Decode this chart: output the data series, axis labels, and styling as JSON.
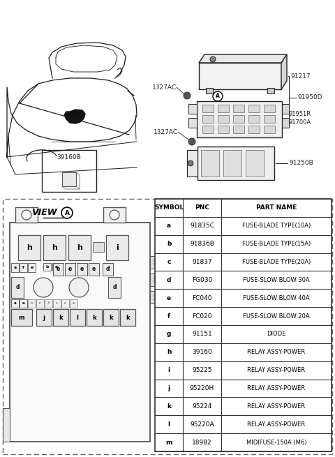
{
  "bg_color": "#ffffff",
  "table_headers": [
    "SYMBOL",
    "PNC",
    "PART NAME"
  ],
  "table_rows": [
    [
      "a",
      "91835C",
      "FUSE-BLADE TYPE(10A)"
    ],
    [
      "b",
      "91836B",
      "FUSE-BLADE TYPE(15A)"
    ],
    [
      "c",
      "91837",
      "FUSE-BLADE TYPE(20A)"
    ],
    [
      "d",
      "FG030",
      "FUSE-SLOW BLOW 30A"
    ],
    [
      "e",
      "FC040",
      "FUSE-SLOW BLOW 40A"
    ],
    [
      "f",
      "FC020",
      "FUSE-SLOW BLOW 20A"
    ],
    [
      "g",
      "91151",
      "DIODE"
    ],
    [
      "h",
      "39160",
      "RELAY ASSY-POWER"
    ],
    [
      "i",
      "95225",
      "RELAY ASSY-POWER"
    ],
    [
      "j",
      "95220H",
      "RELAY ASSY-POWER"
    ],
    [
      "k",
      "95224",
      "RELAY ASSY-POWER"
    ],
    [
      "l",
      "95220A",
      "RELAY ASSY-POWER"
    ],
    [
      "m",
      "18982",
      "MIDIFUSE-150A (M6)"
    ]
  ],
  "label_91217": "91217",
  "label_91950D": "91950D",
  "label_91951R": "91951R",
  "label_91700A": "91700A",
  "label_91250B": "91250B",
  "label_1327AC": "1327AC",
  "label_39160B": "39160B",
  "view_label": "VIEW",
  "view_circle": "A",
  "line_color": "#222222",
  "text_color": "#000000",
  "dashed_color": "#666666",
  "car_color": "#1a1a1a"
}
